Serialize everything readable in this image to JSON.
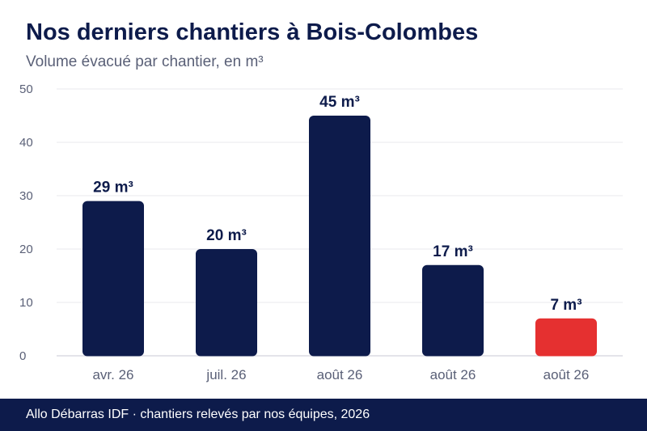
{
  "title": "Nos derniers chantiers à Bois-Colombes",
  "subtitle": "Volume évacué par chantier, en m³",
  "footer": "Allo Débarras IDF · chantiers relevés par nos équipes, 2026",
  "colors": {
    "bar": "#0d1b4b",
    "highlight": "#e53030",
    "text": "#0d1b4b",
    "muted": "#5a6077",
    "grid": "#e8e8ee"
  },
  "chart_data": {
    "type": "bar",
    "categories": [
      "avr. 26",
      "juil. 26",
      "août 26",
      "août 26",
      "août 26"
    ],
    "values": [
      29,
      20,
      45,
      17,
      7
    ],
    "value_labels": [
      "29 m³",
      "20 m³",
      "45 m³",
      "17 m³",
      "7 m³"
    ],
    "highlight_index": 4,
    "ylim": [
      0,
      50
    ],
    "yticks": [
      0,
      10,
      20,
      30,
      40,
      50
    ],
    "grid": true
  }
}
